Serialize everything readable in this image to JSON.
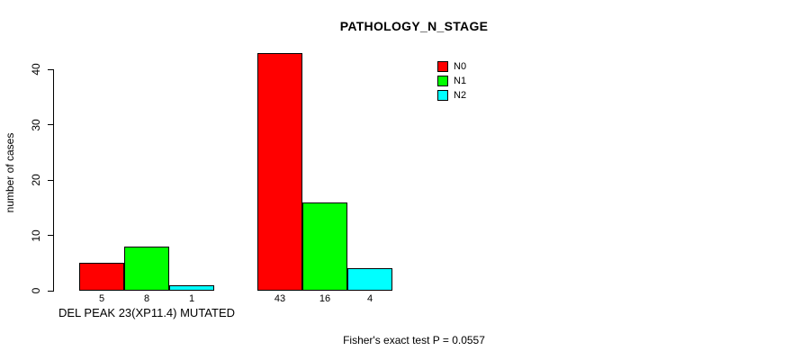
{
  "chart_data": {
    "type": "bar",
    "title": "PATHOLOGY_N_STAGE",
    "xlabel": "",
    "ylabel": "number of cases",
    "ylim": [
      0,
      43
    ],
    "yticks": [
      0,
      10,
      20,
      30,
      40
    ],
    "grid": false,
    "legend_position": "top-right",
    "bar_value_labels": true,
    "categories": [
      "DEL PEAK 23(XP11.4) MUTATED",
      ""
    ],
    "series": [
      {
        "name": "N0",
        "color": "#ff0000",
        "values": [
          5,
          43
        ]
      },
      {
        "name": "N1",
        "color": "#00ff00",
        "values": [
          8,
          16
        ]
      },
      {
        "name": "N2",
        "color": "#00ffff",
        "values": [
          1,
          4
        ]
      }
    ],
    "annotation": "Fisher's exact test P = 0.0557"
  }
}
